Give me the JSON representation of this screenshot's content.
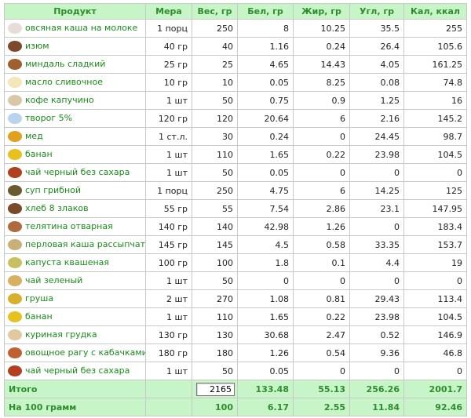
{
  "headers": [
    "Продукт",
    "Мера",
    "Вес, гр",
    "Бел, гр",
    "Жир, гр",
    "Угл, гр",
    "Кал, ккал"
  ],
  "rows": [
    {
      "name": "овсяная каша на молоке",
      "measure": "1 порц",
      "weight": "250",
      "protein": "8",
      "fat": "10.25",
      "carbs": "35.5",
      "kcal": "255",
      "icon": "porridge-icon",
      "color": "#e8dcd8"
    },
    {
      "name": "изюм",
      "measure": "40 гр",
      "weight": "40",
      "protein": "1.16",
      "fat": "0.24",
      "carbs": "26.4",
      "kcal": "105.6",
      "icon": "raisin-icon",
      "color": "#7a4a2a"
    },
    {
      "name": "миндаль сладкий",
      "measure": "25 гр",
      "weight": "25",
      "protein": "4.65",
      "fat": "14.43",
      "carbs": "4.05",
      "kcal": "161.25",
      "icon": "almond-icon",
      "color": "#a0602e"
    },
    {
      "name": "масло сливочное",
      "measure": "10 гр",
      "weight": "10",
      "protein": "0.05",
      "fat": "8.25",
      "carbs": "0.08",
      "kcal": "74.8",
      "icon": "butter-icon",
      "color": "#f3e6b8"
    },
    {
      "name": "кофе капучино",
      "measure": "1 шт",
      "weight": "50",
      "protein": "0.75",
      "fat": "0.9",
      "carbs": "1.25",
      "kcal": "16",
      "icon": "cappuccino-icon",
      "color": "#d9c7a8"
    },
    {
      "name": "творог 5%",
      "measure": "120 гр",
      "weight": "120",
      "protein": "20.64",
      "fat": "6",
      "carbs": "2.16",
      "kcal": "145.2",
      "icon": "cottage-cheese-icon",
      "color": "#b9d4ec"
    },
    {
      "name": "мед",
      "measure": "1 ст.л.",
      "weight": "30",
      "protein": "0.24",
      "fat": "0",
      "carbs": "24.45",
      "kcal": "98.7",
      "icon": "honey-icon",
      "color": "#e0a020"
    },
    {
      "name": "банан",
      "measure": "1 шт",
      "weight": "110",
      "protein": "1.65",
      "fat": "0.22",
      "carbs": "23.98",
      "kcal": "104.5",
      "icon": "banana-icon",
      "color": "#e8c020"
    },
    {
      "name": "чай черный без сахара",
      "measure": "1 шт",
      "weight": "50",
      "protein": "0.05",
      "fat": "0",
      "carbs": "0",
      "kcal": "0",
      "icon": "black-tea-icon",
      "color": "#b04020"
    },
    {
      "name": "суп грибной",
      "measure": "1 порц",
      "weight": "250",
      "protein": "4.75",
      "fat": "6",
      "carbs": "14.25",
      "kcal": "125",
      "icon": "mushroom-soup-icon",
      "color": "#6a5a30"
    },
    {
      "name": "хлеб 8 злаков",
      "measure": "55 гр",
      "weight": "55",
      "protein": "7.54",
      "fat": "2.86",
      "carbs": "23.1",
      "kcal": "147.95",
      "icon": "bread-icon",
      "color": "#7a4a28"
    },
    {
      "name": "телятина отварная",
      "measure": "140 гр",
      "weight": "140",
      "protein": "42.98",
      "fat": "1.26",
      "carbs": "0",
      "kcal": "183.4",
      "icon": "veal-icon",
      "color": "#b06a40"
    },
    {
      "name": "перловая каша рассыпчатая",
      "measure": "145 гр",
      "weight": "145",
      "protein": "4.5",
      "fat": "0.58",
      "carbs": "33.35",
      "kcal": "153.7",
      "icon": "barley-porridge-icon",
      "color": "#c8b078"
    },
    {
      "name": "капуста квашеная",
      "measure": "100 гр",
      "weight": "100",
      "protein": "1.8",
      "fat": "0.1",
      "carbs": "4.4",
      "kcal": "19",
      "icon": "sauerkraut-icon",
      "color": "#c8c060"
    },
    {
      "name": "чай зеленый",
      "measure": "1 шт",
      "weight": "50",
      "protein": "0",
      "fat": "0",
      "carbs": "0",
      "kcal": "0",
      "icon": "green-tea-icon",
      "color": "#d8b060"
    },
    {
      "name": "груша",
      "measure": "2 шт",
      "weight": "270",
      "protein": "1.08",
      "fat": "0.81",
      "carbs": "29.43",
      "kcal": "113.4",
      "icon": "pear-icon",
      "color": "#d8b030"
    },
    {
      "name": "банан",
      "measure": "1 шт",
      "weight": "110",
      "protein": "1.65",
      "fat": "0.22",
      "carbs": "23.98",
      "kcal": "104.5",
      "icon": "banana-icon",
      "color": "#e8c020"
    },
    {
      "name": "куриная грудка",
      "measure": "130 гр",
      "weight": "130",
      "protein": "30.68",
      "fat": "2.47",
      "carbs": "0.52",
      "kcal": "146.9",
      "icon": "chicken-breast-icon",
      "color": "#e0c8a0"
    },
    {
      "name": "овощное рагу с кабачками",
      "measure": "180 гр",
      "weight": "180",
      "protein": "1.26",
      "fat": "0.54",
      "carbs": "9.36",
      "kcal": "46.8",
      "icon": "vegetable-stew-icon",
      "color": "#c06030"
    },
    {
      "name": "чай черный без сахара",
      "measure": "1 шт",
      "weight": "50",
      "protein": "0.05",
      "fat": "0",
      "carbs": "0",
      "kcal": "0",
      "icon": "black-tea-icon",
      "color": "#b04020"
    }
  ],
  "total": {
    "label": "Итого",
    "weight": "2165",
    "protein": "133.48",
    "fat": "55.13",
    "carbs": "256.26",
    "kcal": "2001.7"
  },
  "per100": {
    "label": "На 100 грамм",
    "weight": "100",
    "protein": "6.17",
    "fat": "2.55",
    "carbs": "11.84",
    "kcal": "92.46"
  },
  "colors": {
    "header_bg": "#c8f5c8",
    "header_text": "#2e8b2e",
    "link": "#1a8c1a",
    "border": "#c9c9c9"
  }
}
